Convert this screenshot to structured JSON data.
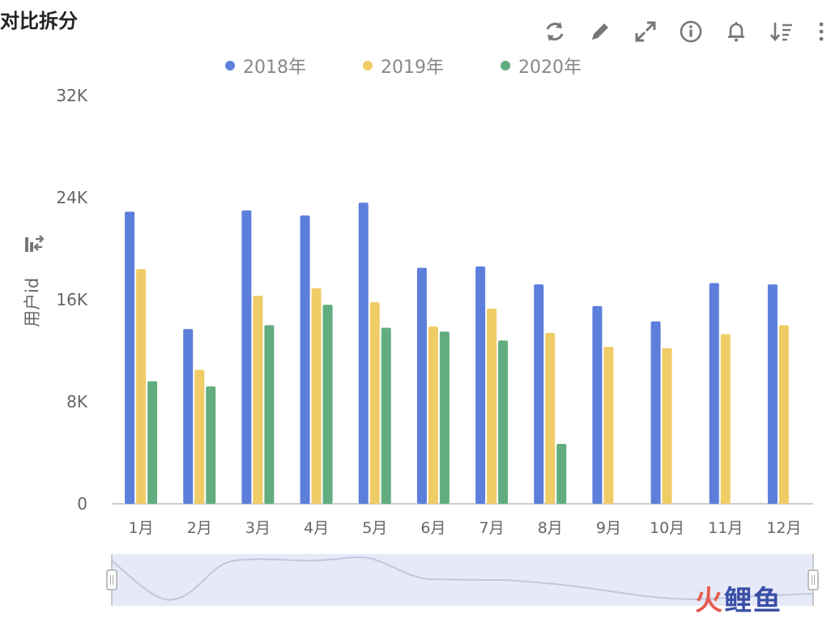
{
  "title": "对比拆分",
  "toolbar": {
    "icons": [
      "refresh-icon",
      "edit-icon",
      "expand-icon",
      "info-icon",
      "bell-icon",
      "sort-icon",
      "more-icon"
    ]
  },
  "colors": {
    "s2018": "#5b7fdb",
    "s2019": "#f0cc66",
    "s2020": "#62ad7f",
    "axis": "#cccccc",
    "tick_text": "#666666",
    "zoom_fill": "#e6e9f8",
    "zoom_line": "#c2c8de"
  },
  "chart_data": {
    "type": "bar",
    "title": "",
    "xlabel": "",
    "ylabel": "用户id",
    "ylim": [
      0,
      32000
    ],
    "y_ticks": [
      0,
      8000,
      16000,
      24000,
      32000
    ],
    "y_tick_labels": [
      "0",
      "8K",
      "16K",
      "24K",
      "32K"
    ],
    "grid": false,
    "legend_position": "top-center",
    "categories": [
      "1月",
      "2月",
      "3月",
      "4月",
      "5月",
      "6月",
      "7月",
      "8月",
      "9月",
      "10月",
      "11月",
      "12月"
    ],
    "series": [
      {
        "name": "2018年",
        "values": [
          22900,
          13700,
          23000,
          22600,
          23600,
          18500,
          18600,
          17200,
          15500,
          14300,
          17300,
          17200
        ]
      },
      {
        "name": "2019年",
        "values": [
          18400,
          10500,
          16300,
          16900,
          15800,
          13900,
          15300,
          13400,
          12300,
          12200,
          13300,
          14000
        ]
      },
      {
        "name": "2020年",
        "values": [
          9600,
          9200,
          14000,
          15600,
          13800,
          13500,
          12800,
          4700,
          null,
          null,
          null,
          null
        ]
      }
    ]
  },
  "watermark": {
    "char1": "火",
    "char2": "鲤",
    "char3": "鱼"
  }
}
